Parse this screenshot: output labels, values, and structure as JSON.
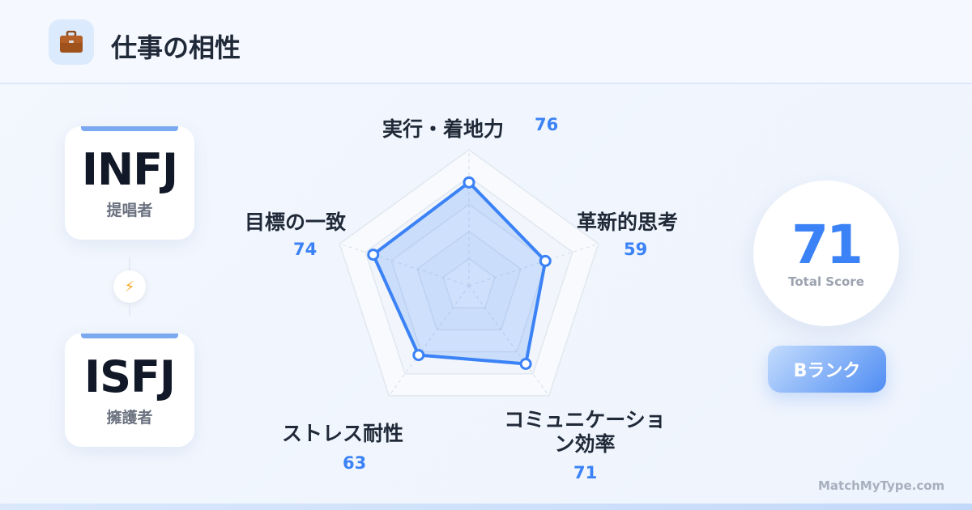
{
  "header": {
    "title": "仕事の相性",
    "icon": "briefcase-icon"
  },
  "types": [
    {
      "code": "INFJ",
      "nickname": "提唱者"
    },
    {
      "code": "ISFJ",
      "nickname": "擁護者"
    }
  ],
  "connector_icon": "lightning-icon",
  "chart_data": {
    "type": "radar",
    "range": [
      0,
      100
    ],
    "axes": [
      {
        "label": "実行・着地力",
        "value": 76
      },
      {
        "label": "革新的思考",
        "value": 59
      },
      {
        "label": "コミュニケーション効率",
        "value": 71
      },
      {
        "label": "ストレス耐性",
        "value": 63
      },
      {
        "label": "目標の一致",
        "value": 74
      }
    ],
    "color": "#3b82f6"
  },
  "score": {
    "value": "71",
    "caption": "Total Score"
  },
  "rank": {
    "label": "Bランク"
  },
  "footer": {
    "brand": "MatchMyType.com"
  }
}
